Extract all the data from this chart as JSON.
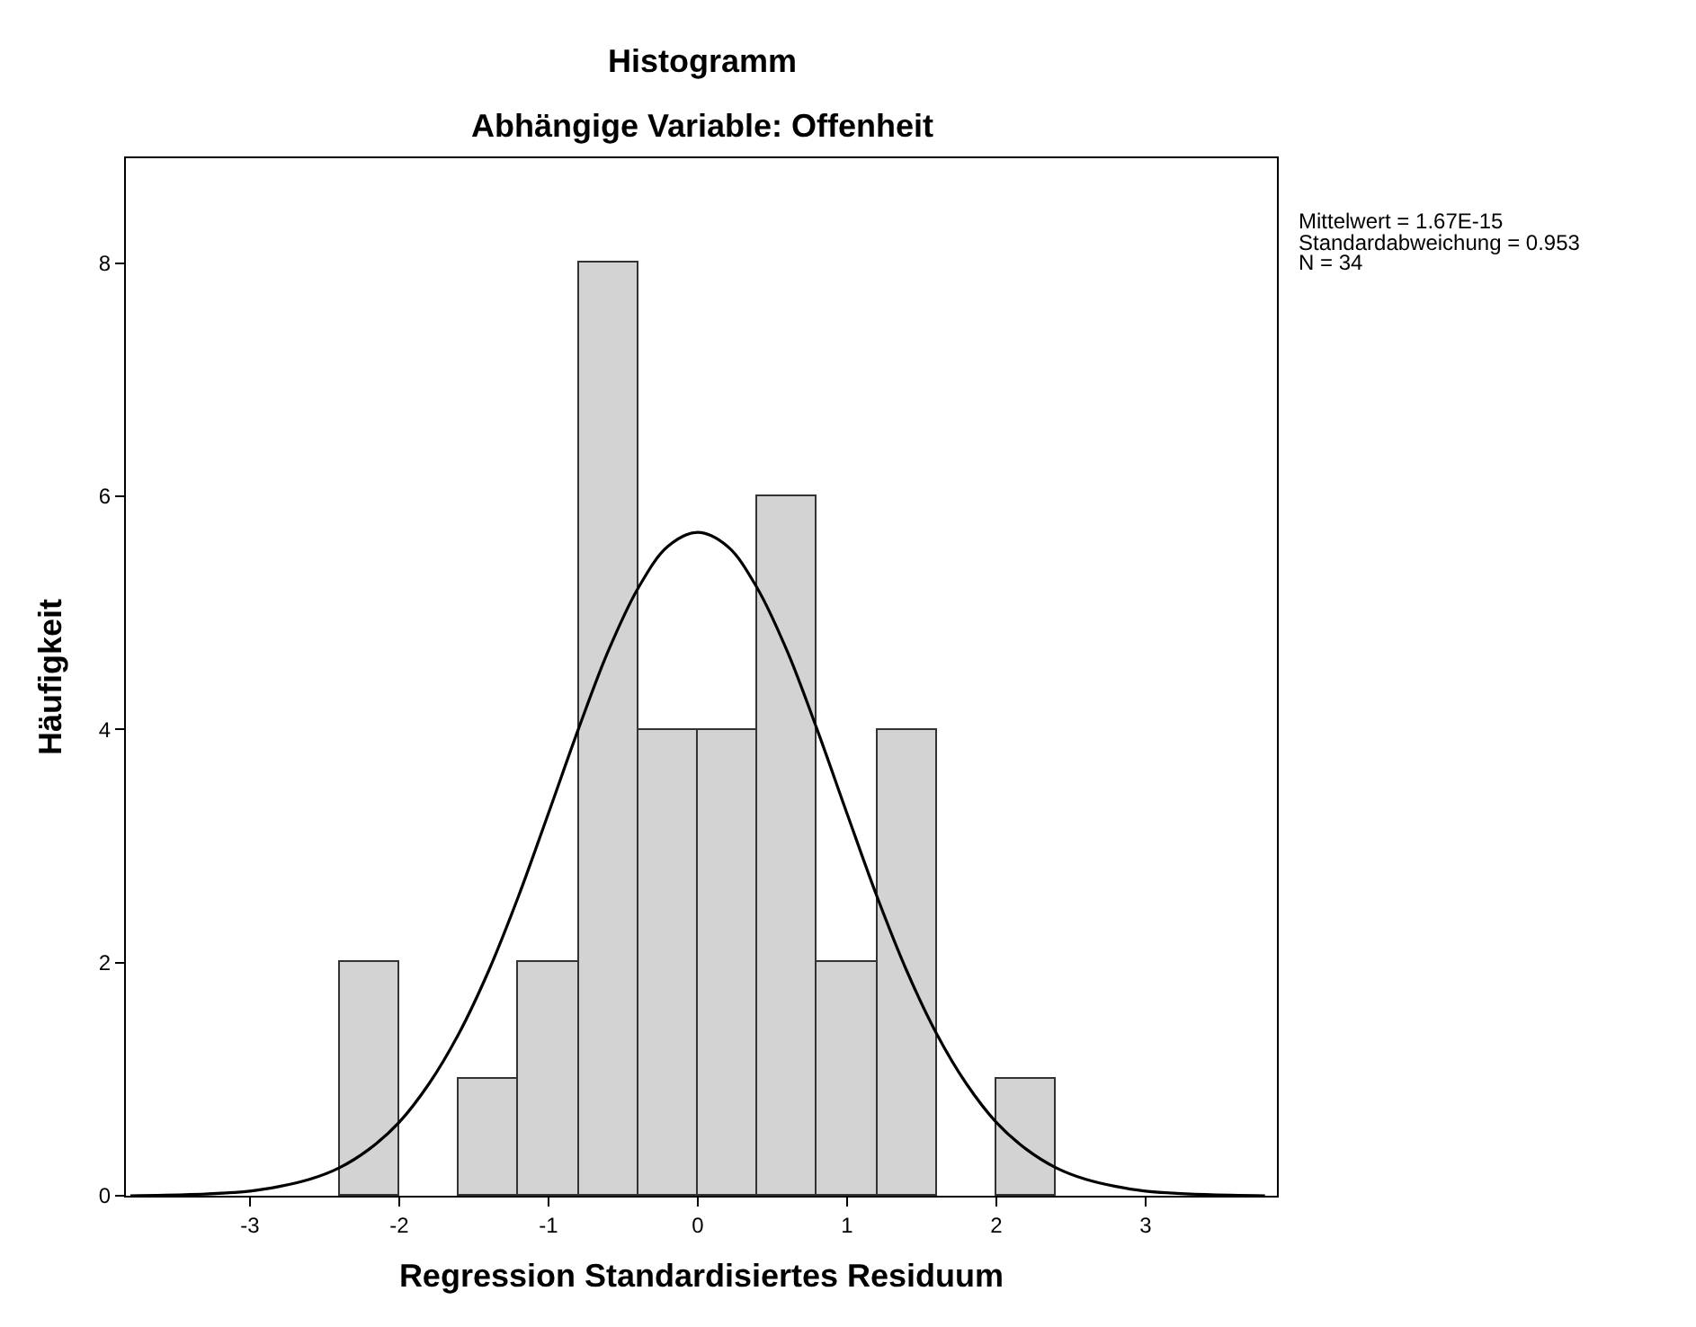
{
  "chart_data": {
    "type": "histogram",
    "title": "Histogramm",
    "subtitle": "Abhängige Variable: Offenheit",
    "xlabel": "Regression Standardisiertes Residuum",
    "ylabel": "Häufigkeit",
    "bins": [
      -2.4,
      -2.0,
      -1.6,
      -1.2,
      -0.8,
      -0.4,
      0.0,
      0.4,
      0.8,
      1.2,
      1.6,
      2.0,
      2.4
    ],
    "values": [
      2,
      0,
      1,
      2,
      8,
      4,
      4,
      6,
      2,
      4,
      0,
      1
    ],
    "color": "#d3d3d3",
    "series": [
      {
        "type": "line",
        "color": "#000000",
        "x": [
          -3.8,
          -3.4,
          -3.0,
          -2.8,
          -2.6,
          -2.4,
          -2.2,
          -2.0,
          -1.8,
          -1.6,
          -1.4,
          -1.2,
          -1.0,
          -0.8,
          -0.6,
          -0.4,
          -0.2,
          0.0,
          0.2,
          0.4,
          0.6,
          0.8,
          1.0,
          1.2,
          1.4,
          1.6,
          1.8,
          2.0,
          2.2,
          2.4,
          2.6,
          2.8,
          3.0,
          3.4,
          3.8
        ],
        "values": [
          0.0,
          0.01,
          0.04,
          0.08,
          0.14,
          0.24,
          0.4,
          0.63,
          0.96,
          1.39,
          1.93,
          2.57,
          3.28,
          4.0,
          4.67,
          5.21,
          5.57,
          5.69,
          5.57,
          5.21,
          4.67,
          4.0,
          3.28,
          2.57,
          1.93,
          1.39,
          0.96,
          0.63,
          0.4,
          0.24,
          0.14,
          0.08,
          0.04,
          0.01,
          0.0
        ]
      }
    ],
    "xlim": [
      -3.83,
      3.88
    ],
    "xticks": [
      -3,
      -2,
      -1,
      0,
      1,
      2,
      3
    ],
    "ylim": [
      0,
      8.9
    ],
    "yticks": [
      0,
      2,
      4,
      6,
      8
    ],
    "annotations": [
      "Mittelwert = 1.67E-15",
      "Standardabweichung = 0.953",
      "N = 34"
    ]
  }
}
